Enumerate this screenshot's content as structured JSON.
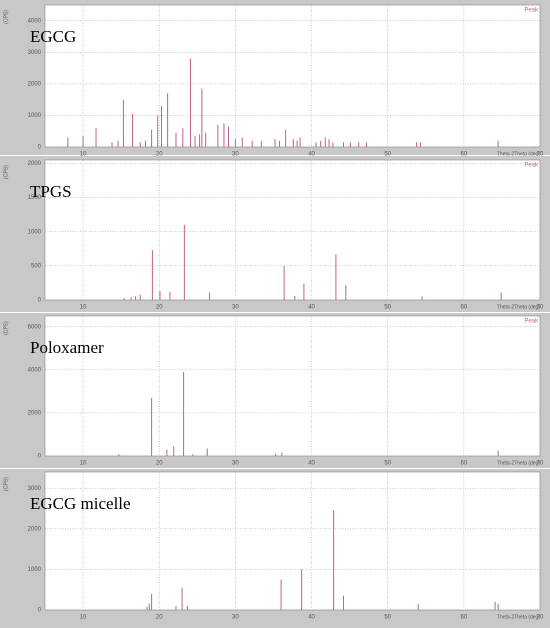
{
  "chart_data": [
    {
      "type": "stick",
      "title": "EGCG",
      "series_name": "Peak",
      "color": "#c0608a",
      "x": [
        8.0,
        10.0,
        11.7,
        13.8,
        14.6,
        15.3,
        16.5,
        17.5,
        18.2,
        19.0,
        19.8,
        20.3,
        21.1,
        22.2,
        23.1,
        24.1,
        24.7,
        25.3,
        25.6,
        26.1,
        27.7,
        28.5,
        29.1,
        30.0,
        30.9,
        32.2,
        33.4,
        35.2,
        35.8,
        36.6,
        37.6,
        38.1,
        38.5,
        40.6,
        41.2,
        41.8,
        42.3,
        42.8,
        44.2,
        45.1,
        46.2,
        47.2,
        53.8,
        54.3,
        64.5
      ],
      "values": [
        300,
        350,
        600,
        150,
        200,
        1500,
        1050,
        150,
        200,
        550,
        1000,
        1300,
        1700,
        450,
        600,
        2800,
        350,
        400,
        1850,
        450,
        700,
        750,
        650,
        250,
        300,
        200,
        200,
        250,
        200,
        550,
        250,
        200,
        300,
        150,
        200,
        300,
        250,
        150,
        150,
        150,
        150,
        150,
        150,
        150,
        200
      ],
      "xlim": [
        5,
        70
      ],
      "ylim": [
        0,
        4500
      ],
      "xticks": [
        10,
        20,
        30,
        40,
        50,
        60,
        70
      ],
      "yticks": [
        0,
        1000,
        2000,
        3000,
        4000
      ],
      "xlabel": "Theta-2Theta (deg)",
      "ylabel": "(CPS)",
      "grid": true
    },
    {
      "type": "stick",
      "title": "TPGS",
      "series_name": "Peak",
      "color": "#c0608a",
      "x": [
        15.4,
        16.3,
        16.9,
        17.5,
        19.1,
        20.1,
        21.4,
        23.3,
        26.6,
        36.4,
        37.8,
        39.0,
        43.2,
        44.5,
        54.5,
        64.9
      ],
      "values": [
        30,
        40,
        60,
        80,
        730,
        130,
        120,
        1100,
        110,
        500,
        60,
        240,
        670,
        220,
        50,
        110
      ],
      "xlim": [
        5,
        70
      ],
      "ylim": [
        0,
        2050
      ],
      "xticks": [
        10,
        20,
        30,
        40,
        50,
        60,
        70
      ],
      "yticks": [
        0,
        500,
        1000,
        1500,
        2000
      ],
      "xlabel": "Theta-2Theta (deg)",
      "ylabel": "(CPS)",
      "grid": true
    },
    {
      "type": "stick",
      "title": "Poloxamer",
      "series_name": "Peak",
      "color": "#c0608a",
      "x": [
        14.7,
        19.0,
        21.0,
        21.9,
        23.2,
        24.4,
        26.3,
        35.3,
        36.1,
        64.5
      ],
      "values": [
        80,
        2700,
        300,
        450,
        3900,
        80,
        350,
        100,
        150,
        250
      ],
      "xlim": [
        5,
        70
      ],
      "ylim": [
        0,
        6500
      ],
      "xticks": [
        10,
        20,
        30,
        40,
        50,
        60,
        70
      ],
      "yticks": [
        0,
        2000,
        4000,
        6000
      ],
      "xlabel": "Theta-2Theta (deg)",
      "ylabel": "(CPS)",
      "grid": true
    },
    {
      "type": "stick",
      "title": "EGCG micelle",
      "color": "#c0608a",
      "x": [
        18.4,
        18.7,
        19.0,
        22.2,
        23.0,
        23.7,
        36.0,
        38.7,
        42.9,
        44.2,
        54.0,
        64.1,
        64.5
      ],
      "values": [
        80,
        150,
        400,
        100,
        550,
        100,
        750,
        1000,
        2450,
        350,
        150,
        200,
        150
      ],
      "xlim": [
        5,
        70
      ],
      "ylim": [
        0,
        3400
      ],
      "xticks": [
        10,
        20,
        30,
        40,
        50,
        60,
        70
      ],
      "yticks": [
        0,
        1000,
        2000,
        3000
      ],
      "xlabel": "Theta-2Theta (deg)",
      "ylabel": "(CPS)",
      "grid": true
    }
  ]
}
